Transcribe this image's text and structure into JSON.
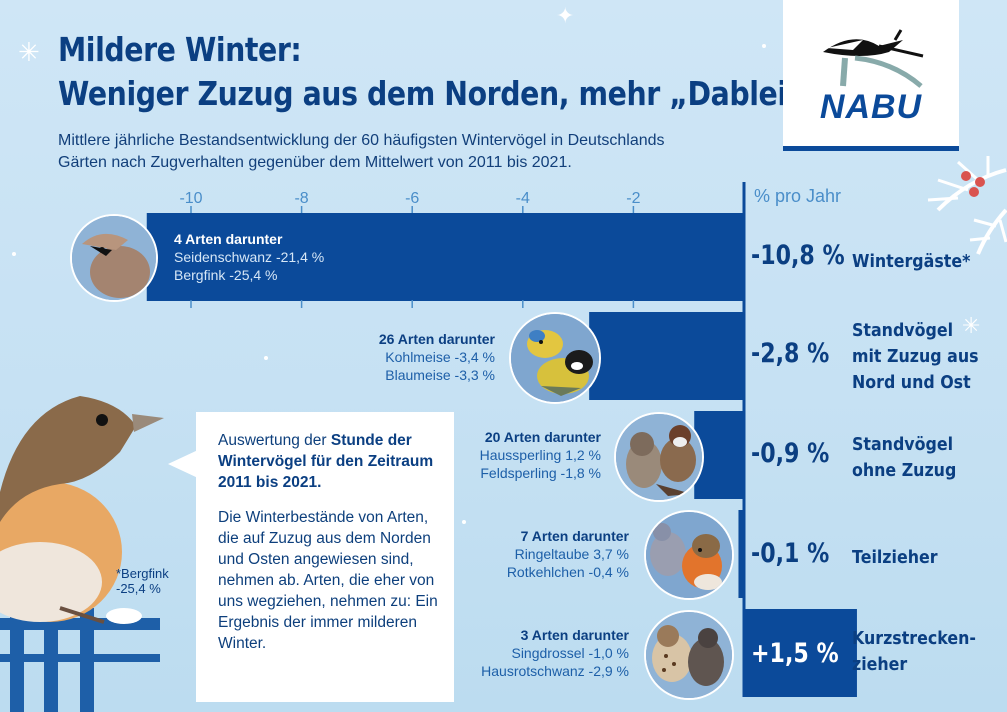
{
  "header": {
    "title_line1": "Mildere Winter:",
    "title_line2": "Weniger Zuzug aus dem Norden, mehr „Dableiber“",
    "subtitle": "Mittlere jährliche Bestandsentwicklung der 60 häufigsten Wintervögel in Deutschlands Gärten nach Zugverhalten gegenüber dem Mittelwert von 2011 bis 2021."
  },
  "logo": {
    "text": "NABU",
    "brand_color": "#0b4a9a"
  },
  "colors": {
    "bar": "#0b4a9a",
    "axis_text": "#4a8ec9",
    "background": "#cfe6f5"
  },
  "chart_data": {
    "type": "bar",
    "orientation": "horizontal",
    "unit": "% pro Jahr",
    "xlim": [
      -10.8,
      1.5
    ],
    "ticks": [
      -10,
      -8,
      -6,
      -4,
      -2
    ],
    "tick_labels": [
      "-10",
      "-8",
      "-6",
      "-4",
      "-2"
    ],
    "grid": false,
    "categories": [
      "Wintergäste*",
      "Standvögel mit Zuzug aus Nord und Ost",
      "Standvögel ohne Zuzug",
      "Teilzieher",
      "Kurzstreckenzieher"
    ],
    "category_labels": [
      "Wintergäste*",
      "Standvögel\nmit Zuzug aus\nNord und Ost",
      "Standvögel\nohne Zuzug",
      "Teilzieher",
      "Kurzstrecken-\nzieher"
    ],
    "values": [
      -10.8,
      -2.8,
      -0.9,
      -0.1,
      1.5
    ],
    "value_labels": [
      "-10,8 %",
      "-2,8 %",
      "-0,9 %",
      "-0,1 %",
      "+1,5 %"
    ],
    "annotations": [
      {
        "header": "4 Arten darunter",
        "species": [
          "Seidenschwanz -21,4 %",
          "Bergfink -25,4 %"
        ]
      },
      {
        "header": "26 Arten darunter",
        "species": [
          "Kohlmeise -3,4 %",
          "Blaumeise -3,3 %"
        ]
      },
      {
        "header": "20 Arten darunter",
        "species": [
          "Haussperling 1,2 %",
          "Feldsperling -1,8 %"
        ]
      },
      {
        "header": "7 Arten darunter",
        "species": [
          "Ringeltaube 3,7 %",
          "Rotkehlchen -0,4 %"
        ]
      },
      {
        "header": "3 Arten darunter",
        "species": [
          "Singdrossel -1,0 %",
          "Hausrotschwanz -2,9 %"
        ]
      }
    ]
  },
  "bird_icons": [
    "waxwing-icon",
    "tit-icon",
    "sparrow-icon",
    "robin-pigeon-icon",
    "thrush-icon"
  ],
  "callout": {
    "p1_prefix": "Auswertung der ",
    "p1_bold": "Stunde der Wintervögel für den Zeitraum 2011 bis 2021.",
    "p2": "Die Winterbestände von Arten, die auf Zuzug aus dem Norden und Osten angewiesen sind, nehmen ab. Arten, die eher von uns wegziehen, nehmen zu: Ein Ergebnis der immer milderen Winter."
  },
  "footnote": {
    "line1": "*Bergfink",
    "line2": "-25,4 %"
  }
}
